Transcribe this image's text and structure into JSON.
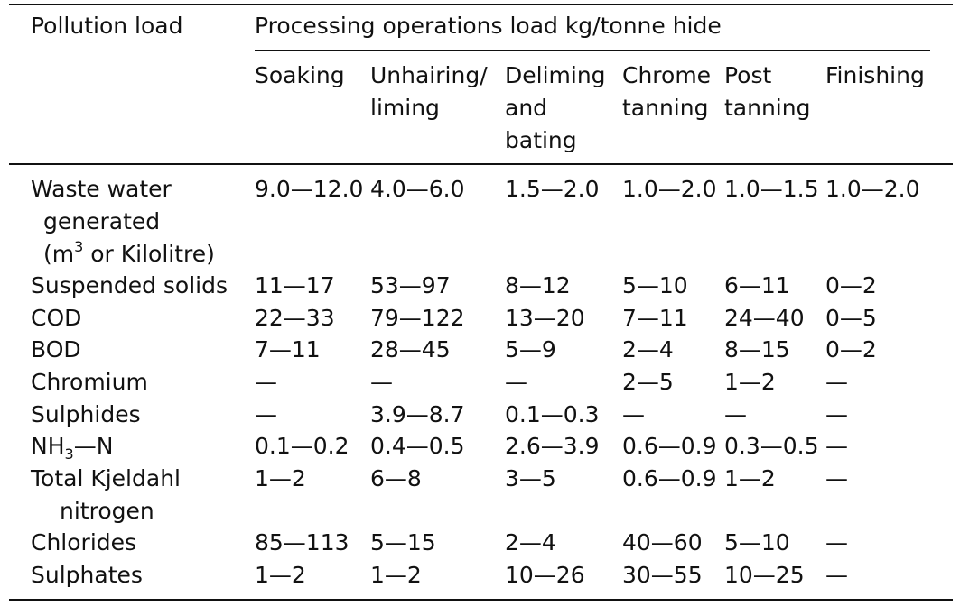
{
  "table": {
    "stub_header": "Pollution load",
    "group_header": "Processing operations load kg/tonne hide",
    "columns": [
      [
        "Soaking"
      ],
      [
        "Unhairing/",
        "liming"
      ],
      [
        "Deliming",
        "and",
        "bating"
      ],
      [
        "Chrome",
        "tanning"
      ],
      [
        "Post",
        "tanning"
      ],
      [
        "Finishing"
      ]
    ],
    "rows": [
      {
        "label": [
          "Waste water",
          "generated",
          "(m",
          "3",
          " or Kilolitre)"
        ],
        "values": [
          "9.0—12.0",
          "4.0—6.0",
          "1.5—2.0",
          "1.0—2.0",
          "1.0—1.5",
          "1.0—2.0"
        ]
      },
      {
        "label": [
          "Suspended solids"
        ],
        "values": [
          "11—17",
          "53—97",
          "8—12",
          "5—10",
          "6—11",
          "0—2"
        ]
      },
      {
        "label": [
          "COD"
        ],
        "values": [
          "22—33",
          "79—122",
          "13—20",
          "7—11",
          "24—40",
          "0—5"
        ]
      },
      {
        "label": [
          "BOD"
        ],
        "values": [
          "7—11",
          "28—45",
          "5—9",
          "2—4",
          "8—15",
          "0—2"
        ]
      },
      {
        "label": [
          "Chromium"
        ],
        "values": [
          "—",
          "—",
          "—",
          "2—5",
          "1—2",
          "—"
        ]
      },
      {
        "label": [
          "Sulphides"
        ],
        "values": [
          "—",
          "3.9—8.7",
          "0.1—0.3",
          "—",
          "—",
          "—"
        ]
      },
      {
        "label": [
          "NH",
          "3",
          "—N"
        ],
        "values": [
          "0.1—0.2",
          "0.4—0.5",
          "2.6—3.9",
          "0.6—0.9",
          "0.3—0.5",
          "—"
        ]
      },
      {
        "label": [
          "Total Kjeldahl",
          "nitrogen"
        ],
        "values": [
          "1—2",
          "6—8",
          "3—5",
          "0.6—0.9",
          "1—2",
          "—"
        ]
      },
      {
        "label": [
          "Chlorides"
        ],
        "values": [
          "85—113",
          "5—15",
          "2—4",
          "40—60",
          "5—10",
          "—"
        ]
      },
      {
        "label": [
          "Sulphates"
        ],
        "values": [
          "1—2",
          "1—2",
          "10—26",
          "30—55",
          "10—25",
          "—"
        ]
      }
    ]
  }
}
